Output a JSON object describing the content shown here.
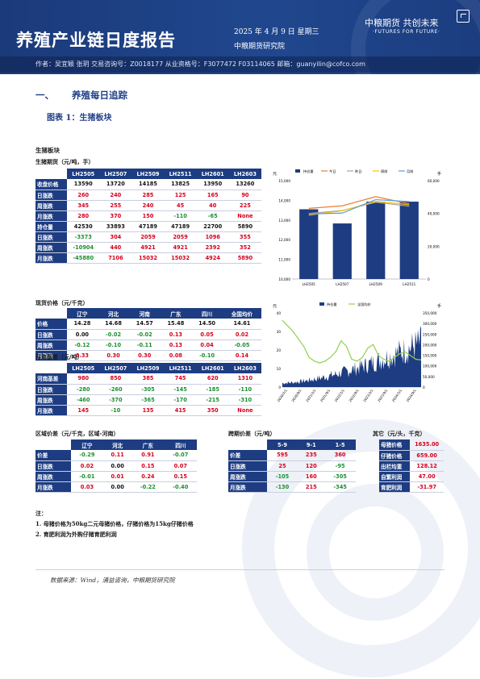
{
  "header": {
    "title": "养殖产业链日度报告",
    "date": "2025 年 4 月 9 日 星期三",
    "org": "中粮期货研究院",
    "logo_cn": "中粮期货  共创未来",
    "logo_en": "·FUTURES FOR FUTURE·",
    "authors": "作者：吴宜颖   张玥   交易咨询号：Z0018177 从业资格号：F3077472 F03114065  邮箱：guanyilin@cofco.com"
  },
  "section": {
    "num": "一、",
    "title": "养殖每日追踪"
  },
  "figure_title": "图表 1：生猪板块",
  "block_title": "生猪板块",
  "futures": {
    "title": "生猪期货（元/吨，手）",
    "cols": [
      "LH2505",
      "LH2507",
      "LH2509",
      "LH2511",
      "LH2601",
      "LH2603"
    ],
    "rows": [
      {
        "label": "收盘价格",
        "cells": [
          "13590",
          "13720",
          "14185",
          "13825",
          "13950",
          "13260"
        ],
        "color": "blk"
      },
      {
        "label": "日涨跌",
        "cells": [
          "260",
          "240",
          "285",
          "125",
          "165",
          "90"
        ],
        "color": "red"
      },
      {
        "label": "周涨跌",
        "cells": [
          "345",
          "255",
          "240",
          "45",
          "40",
          "225"
        ],
        "color": "red"
      },
      {
        "label": "月涨跌",
        "cells": [
          "280",
          "370",
          "150",
          "-110",
          "-65",
          "None"
        ],
        "color": "mix"
      },
      {
        "label": "持仓量",
        "cells": [
          "42530",
          "33893",
          "47189",
          "47189",
          "22700",
          "5890"
        ],
        "color": "blk"
      },
      {
        "label": "日涨跌",
        "cells": [
          "-3373",
          "304",
          "2059",
          "2059",
          "1096",
          "355"
        ],
        "color": "mix"
      },
      {
        "label": "周涨跌",
        "cells": [
          "-10904",
          "440",
          "4921",
          "4921",
          "2392",
          "352"
        ],
        "color": "mix"
      },
      {
        "label": "月涨跌",
        "cells": [
          "-45880",
          "7106",
          "15032",
          "15032",
          "4924",
          "5890"
        ],
        "color": "mix"
      }
    ]
  },
  "spot": {
    "title": "现货价格（元/千克）",
    "cols": [
      "辽宁",
      "河北",
      "河南",
      "广东",
      "四川",
      "全国均价"
    ],
    "rows": [
      {
        "label": "价格",
        "cells": [
          "14.28",
          "14.68",
          "14.57",
          "15.48",
          "14.50",
          "14.61"
        ]
      },
      {
        "label": "日涨跌",
        "cells": [
          "0.00",
          "-0.02",
          "-0.02",
          "0.13",
          "0.05",
          "0.02"
        ]
      },
      {
        "label": "周涨跌",
        "cells": [
          "-0.12",
          "-0.10",
          "-0.11",
          "0.13",
          "0.04",
          "-0.05"
        ]
      },
      {
        "label": "月涨跌",
        "cells": [
          "0.33",
          "0.30",
          "0.30",
          "0.08",
          "-0.10",
          "0.14"
        ]
      }
    ]
  },
  "basis": {
    "title": "河南基差（元/吨）",
    "cols": [
      "LH2505",
      "LH2507",
      "LH2509",
      "LH2511",
      "LH2601",
      "LH2603"
    ],
    "rows": [
      {
        "label": "河南基差",
        "cells": [
          "980",
          "850",
          "385",
          "745",
          "620",
          "1310"
        ]
      },
      {
        "label": "日涨跌",
        "cells": [
          "-280",
          "-260",
          "-305",
          "-145",
          "-185",
          "-110"
        ]
      },
      {
        "label": "周涨跌",
        "cells": [
          "-460",
          "-370",
          "-365",
          "-170",
          "-215",
          "-310"
        ]
      },
      {
        "label": "月涨跌",
        "cells": [
          "145",
          "-10",
          "135",
          "415",
          "350",
          "None"
        ]
      }
    ]
  },
  "regional": {
    "title": "区域价差（元/千克，区域-河南）",
    "cols": [
      "辽宁",
      "河北",
      "广东",
      "四川"
    ],
    "rows": [
      {
        "label": "价差",
        "cells": [
          "-0.29",
          "0.11",
          "0.91",
          "-0.07"
        ]
      },
      {
        "label": "日涨跌",
        "cells": [
          "0.02",
          "0.00",
          "0.15",
          "0.07"
        ]
      },
      {
        "label": "周涨跌",
        "cells": [
          "-0.01",
          "0.01",
          "0.24",
          "0.15"
        ]
      },
      {
        "label": "月涨跌",
        "cells": [
          "0.03",
          "0.00",
          "-0.22",
          "-0.40"
        ]
      }
    ]
  },
  "spread": {
    "title": "跨期价差（元/吨）",
    "cols": [
      "5-9",
      "9-1",
      "1-5"
    ],
    "rows": [
      {
        "label": "价差",
        "cells": [
          "595",
          "235",
          "360"
        ]
      },
      {
        "label": "日涨跌",
        "cells": [
          "25",
          "120",
          "-95"
        ]
      },
      {
        "label": "周涨跌",
        "cells": [
          "-105",
          "160",
          "-305"
        ]
      },
      {
        "label": "月涨跌",
        "cells": [
          "-130",
          "215",
          "-345"
        ]
      }
    ]
  },
  "other": {
    "title": "其它（元/头，千克）",
    "rows": [
      {
        "label": "母猪价格",
        "value": "1635.00"
      },
      {
        "label": "仔猪价格",
        "value": "659.00"
      },
      {
        "label": "出栏均重",
        "value": "128.12"
      },
      {
        "label": "自繁利润",
        "value": "47.00"
      },
      {
        "label": "育肥利润",
        "value": "-31.97"
      }
    ]
  },
  "notes": {
    "title": "注：",
    "items": [
      "1. 母猪价格为50kg二元母猪价格，仔猪价格为15kg仔猪价格",
      "2. 育肥利润为外购仔猪育肥利润"
    ]
  },
  "source": "数据来源：Wind，涌益咨询，中粮期货研究院",
  "chart_data": [
    {
      "type": "bar",
      "categories": [
        "LH2505",
        "LH2507",
        "LH2509",
        "LH2511"
      ],
      "series": [
        {
          "name": "持仓量",
          "kind": "bar",
          "axis": "right",
          "values": [
            42530,
            33893,
            47189,
            47189
          ]
        },
        {
          "name": "今日",
          "kind": "line",
          "axis": "left",
          "values": [
            13590,
            13720,
            14185,
            13825
          ]
        },
        {
          "name": "昨日",
          "kind": "line",
          "axis": "left",
          "values": [
            13330,
            13480,
            13900,
            13700
          ]
        },
        {
          "name": "周前",
          "kind": "line",
          "axis": "left",
          "values": [
            13245,
            13465,
            13945,
            13780
          ]
        },
        {
          "name": "月前",
          "kind": "line",
          "axis": "left",
          "values": [
            13310,
            13350,
            14035,
            13935
          ]
        }
      ],
      "ylim_left": [
        10000,
        15000
      ],
      "ylim_right": [
        0,
        60000
      ],
      "yticks_left": [
        "10,000",
        "11,000",
        "12,000",
        "13,000",
        "14,000",
        "15,000"
      ],
      "yticks_right": [
        "0",
        "20,000",
        "40,000",
        "60,000"
      ],
      "ylabel_left": "元",
      "ylabel_right": "手",
      "colors": {
        "bar": "#1d3c82",
        "今日": "#ed7d31",
        "昨日": "#a5a5a5",
        "周前": "#ffc000",
        "月前": "#5b9bd5"
      },
      "legend": "top"
    },
    {
      "type": "area",
      "x_ticks": [
        "2020/3/1",
        "2020/9/1",
        "2021/3/1",
        "2021/9/1",
        "2022/3/1",
        "2022/9/1",
        "2023/3/1",
        "2023/9/1",
        "2024/3/1",
        "2024/9/1"
      ],
      "series": [
        {
          "name": "持仓量",
          "kind": "area",
          "axis": "right"
        },
        {
          "name": "全国均价",
          "kind": "line",
          "axis": "left"
        }
      ],
      "ylim_left": [
        0,
        40
      ],
      "ylim_right": [
        0,
        350000
      ],
      "yticks_left": [
        "0",
        "10",
        "20",
        "30",
        "40"
      ],
      "yticks_right": [
        "0",
        "50,000",
        "100,000",
        "150,000",
        "200,000",
        "250,000",
        "300,000",
        "350,000"
      ],
      "ylabel_left": "元",
      "ylabel_right": "手",
      "colors": {
        "持仓量": "#1d3c82",
        "全国均价": "#92d050"
      },
      "legend": "top"
    }
  ]
}
